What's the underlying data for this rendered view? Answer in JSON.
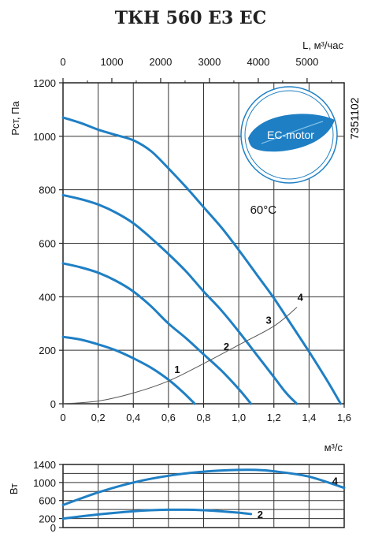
{
  "title": "ТКН 560 Е3 ЕС",
  "code": "7351102",
  "badge": {
    "text": "EC-motor",
    "color": "#1f7fc4"
  },
  "chart_data": [
    {
      "type": "line",
      "ylabel": "Рст, Па",
      "xlabel": "м³/с",
      "x2label": "L, м³/час",
      "xlim": [
        0,
        1.6
      ],
      "ylim": [
        0,
        1200
      ],
      "x2lim": [
        0,
        5760
      ],
      "xticks": [
        "0",
        "0,2",
        "0,4",
        "0,6",
        "0,8",
        "1,0",
        "1,2",
        "1,4",
        "1,6"
      ],
      "yticks": [
        "0",
        "200",
        "400",
        "600",
        "800",
        "1000",
        "1200"
      ],
      "x2ticks": [
        "0",
        "1000",
        "2000",
        "3000",
        "4000",
        "5000"
      ],
      "annotation": "60°C",
      "grid": true,
      "series": [
        {
          "name": "1",
          "color": "#1f7fc4",
          "points": [
            [
              0,
              250
            ],
            [
              0.1,
              240
            ],
            [
              0.2,
              222
            ],
            [
              0.3,
              200
            ],
            [
              0.4,
              170
            ],
            [
              0.5,
              135
            ],
            [
              0.6,
              90
            ],
            [
              0.68,
              45
            ],
            [
              0.75,
              0
            ]
          ]
        },
        {
          "name": "2",
          "color": "#1f7fc4",
          "points": [
            [
              0,
              525
            ],
            [
              0.1,
              510
            ],
            [
              0.2,
              490
            ],
            [
              0.3,
              460
            ],
            [
              0.4,
              420
            ],
            [
              0.5,
              365
            ],
            [
              0.6,
              300
            ],
            [
              0.7,
              245
            ],
            [
              0.8,
              185
            ],
            [
              0.9,
              125
            ],
            [
              1.0,
              55
            ],
            [
              1.07,
              0
            ]
          ]
        },
        {
          "name": "3",
          "color": "#1f7fc4",
          "points": [
            [
              0,
              780
            ],
            [
              0.1,
              765
            ],
            [
              0.2,
              745
            ],
            [
              0.3,
              715
            ],
            [
              0.4,
              675
            ],
            [
              0.5,
              620
            ],
            [
              0.6,
              560
            ],
            [
              0.7,
              495
            ],
            [
              0.8,
              420
            ],
            [
              0.9,
              350
            ],
            [
              1.0,
              270
            ],
            [
              1.1,
              185
            ],
            [
              1.2,
              100
            ],
            [
              1.27,
              40
            ],
            [
              1.33,
              0
            ]
          ]
        },
        {
          "name": "4",
          "color": "#1f7fc4",
          "points": [
            [
              0,
              1070
            ],
            [
              0.1,
              1050
            ],
            [
              0.2,
              1025
            ],
            [
              0.3,
              1005
            ],
            [
              0.4,
              985
            ],
            [
              0.5,
              945
            ],
            [
              0.6,
              880
            ],
            [
              0.7,
              810
            ],
            [
              0.8,
              735
            ],
            [
              0.9,
              660
            ],
            [
              1.0,
              575
            ],
            [
              1.1,
              485
            ],
            [
              1.2,
              395
            ],
            [
              1.3,
              295
            ],
            [
              1.4,
              195
            ],
            [
              1.5,
              90
            ],
            [
              1.58,
              0
            ]
          ]
        },
        {
          "name": "",
          "color": "#555555",
          "role": "system-curve",
          "points": [
            [
              0,
              0
            ],
            [
              0.2,
              10
            ],
            [
              0.4,
              40
            ],
            [
              0.6,
              85
            ],
            [
              0.8,
              150
            ],
            [
              1.0,
              220
            ],
            [
              1.2,
              290
            ],
            [
              1.33,
              360
            ]
          ]
        }
      ],
      "series_labels": [
        {
          "text": "1",
          "x": 0.65,
          "y": 115
        },
        {
          "text": "2",
          "x": 0.93,
          "y": 200
        },
        {
          "text": "3",
          "x": 1.17,
          "y": 300
        },
        {
          "text": "4",
          "x": 1.35,
          "y": 385
        }
      ]
    },
    {
      "type": "line",
      "ylabel": "Вт",
      "ylim": [
        0,
        1400
      ],
      "xlim": [
        0,
        1.6
      ],
      "yticks": [
        "0",
        "200",
        "600",
        "1000",
        "1400"
      ],
      "ytick_values": [
        0,
        200,
        600,
        1000,
        1400
      ],
      "grid": true,
      "series": [
        {
          "name": "4",
          "color": "#1f7fc4",
          "points": [
            [
              0,
              500
            ],
            [
              0.2,
              780
            ],
            [
              0.4,
              1000
            ],
            [
              0.6,
              1150
            ],
            [
              0.8,
              1240
            ],
            [
              1.0,
              1280
            ],
            [
              1.1,
              1280
            ],
            [
              1.2,
              1250
            ],
            [
              1.4,
              1130
            ],
            [
              1.6,
              880
            ]
          ]
        },
        {
          "name": "2",
          "color": "#1f7fc4",
          "points": [
            [
              0,
              200
            ],
            [
              0.2,
              290
            ],
            [
              0.4,
              360
            ],
            [
              0.5,
              385
            ],
            [
              0.6,
              395
            ],
            [
              0.7,
              395
            ],
            [
              0.8,
              385
            ],
            [
              0.9,
              360
            ],
            [
              1.0,
              330
            ],
            [
              1.07,
              300
            ]
          ]
        }
      ]
    }
  ]
}
